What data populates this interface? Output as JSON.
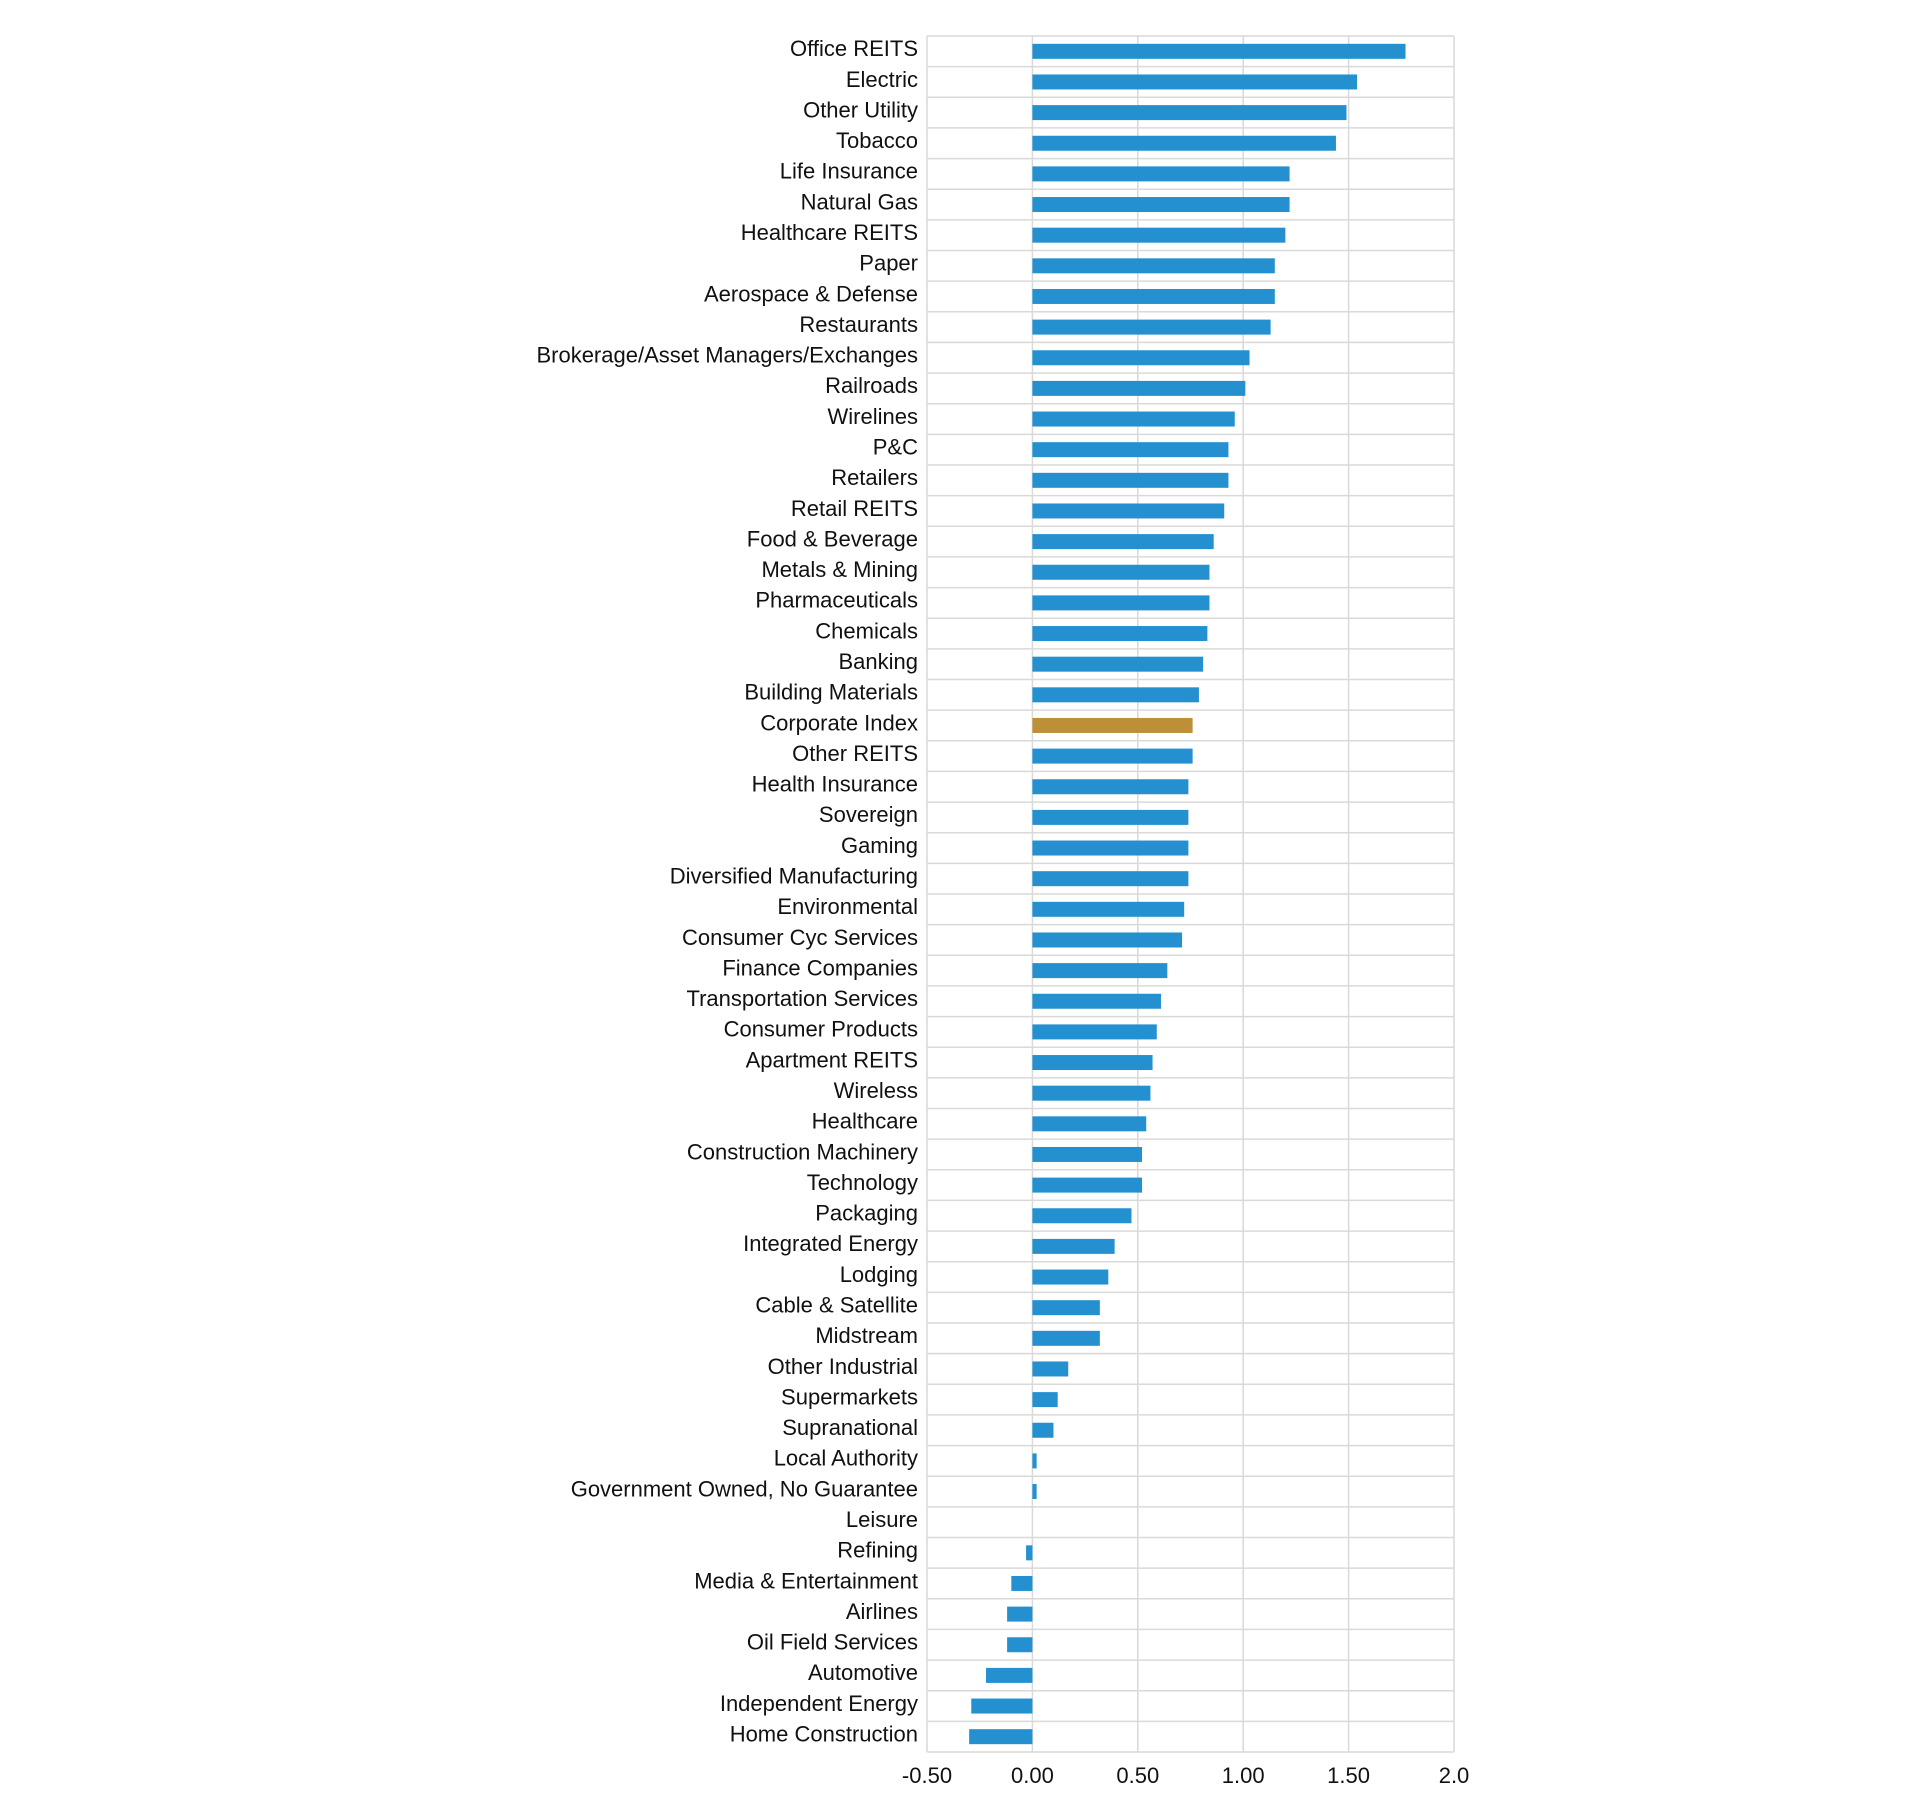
{
  "chart_data": {
    "type": "bar",
    "orientation": "horizontal",
    "title": "",
    "xlabel": "",
    "ylabel": "",
    "xlim": [
      -0.5,
      2.0
    ],
    "x_ticks": [
      "-0.50",
      "0.00",
      "0.50",
      "1.00",
      "1.50",
      "2.0"
    ],
    "x_tick_values": [
      -0.5,
      0.0,
      0.5,
      1.0,
      1.5,
      2.0
    ],
    "grid": true,
    "legend": "none",
    "colors": {
      "bar": "#2590d0",
      "highlight": "#bd8f36",
      "grid": "#d9d9d9"
    },
    "highlight_category": "Corporate Index",
    "categories": [
      "Office REITS",
      "Electric",
      "Other Utility",
      "Tobacco",
      "Life Insurance",
      "Natural Gas",
      "Healthcare REITS",
      "Paper",
      "Aerospace & Defense",
      "Restaurants",
      "Brokerage/Asset Managers/Exchanges",
      "Railroads",
      "Wirelines",
      "P&C",
      "Retailers",
      "Retail REITS",
      "Food & Beverage",
      "Metals & Mining",
      "Pharmaceuticals",
      "Chemicals",
      "Banking",
      "Building Materials",
      "Corporate Index",
      "Other REITS",
      "Health Insurance",
      "Sovereign",
      "Gaming",
      "Diversified Manufacturing",
      "Environmental",
      "Consumer Cyc Services",
      "Finance Companies",
      "Transportation Services",
      "Consumer Products",
      "Apartment REITS",
      "Wireless",
      "Healthcare",
      "Construction Machinery",
      "Technology",
      "Packaging",
      "Integrated Energy",
      "Lodging",
      "Cable & Satellite",
      "Midstream",
      "Other Industrial",
      "Supermarkets",
      "Supranational",
      "Local Authority",
      "Government Owned, No Guarantee",
      "Leisure",
      "Refining",
      "Media & Entertainment",
      "Airlines",
      "Oil Field Services",
      "Automotive",
      "Independent Energy",
      "Home Construction"
    ],
    "values": [
      1.77,
      1.54,
      1.49,
      1.44,
      1.22,
      1.22,
      1.2,
      1.15,
      1.15,
      1.13,
      1.03,
      1.01,
      0.96,
      0.93,
      0.93,
      0.91,
      0.86,
      0.84,
      0.84,
      0.83,
      0.81,
      0.79,
      0.76,
      0.76,
      0.74,
      0.74,
      0.74,
      0.74,
      0.72,
      0.71,
      0.64,
      0.61,
      0.59,
      0.57,
      0.56,
      0.54,
      0.52,
      0.52,
      0.47,
      0.39,
      0.36,
      0.32,
      0.32,
      0.17,
      0.12,
      0.1,
      0.02,
      0.02,
      0.0,
      -0.03,
      -0.1,
      -0.12,
      -0.12,
      -0.22,
      -0.29,
      -0.3
    ]
  }
}
